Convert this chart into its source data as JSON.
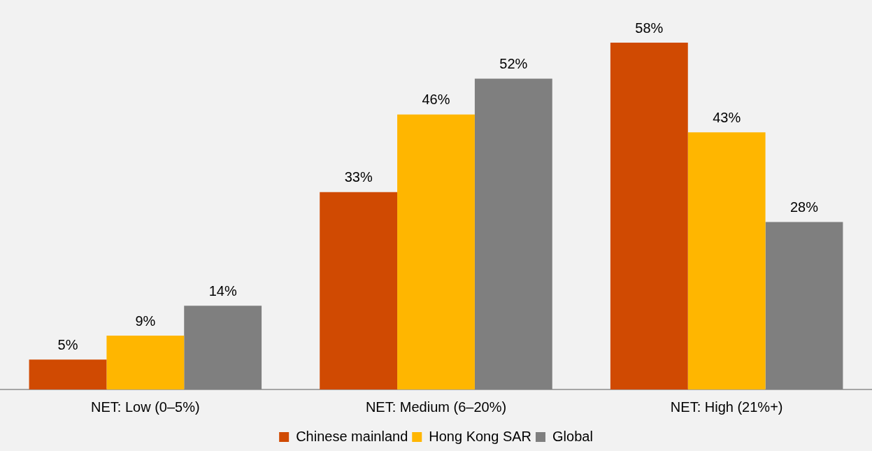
{
  "chart_data": {
    "type": "bar",
    "categories": [
      "NET: Low (0–5%)",
      "NET: Medium (6–20%)",
      "NET: High (21%+)"
    ],
    "series": [
      {
        "name": "Chinese mainland",
        "color": "#d04a02",
        "values": [
          5,
          33,
          58
        ],
        "value_labels": [
          "5%",
          "33%",
          "58%"
        ]
      },
      {
        "name": "Hong Kong SAR",
        "color": "#ffb600",
        "values": [
          9,
          46,
          43
        ],
        "value_labels": [
          "9%",
          "46%",
          "43%"
        ]
      },
      {
        "name": "Global",
        "color": "#7f7f7f",
        "values": [
          14,
          52,
          28
        ],
        "value_labels": [
          "14%",
          "52%",
          "28%"
        ]
      }
    ],
    "tick_labels": "x",
    "grid": false,
    "legend": "bottom"
  }
}
